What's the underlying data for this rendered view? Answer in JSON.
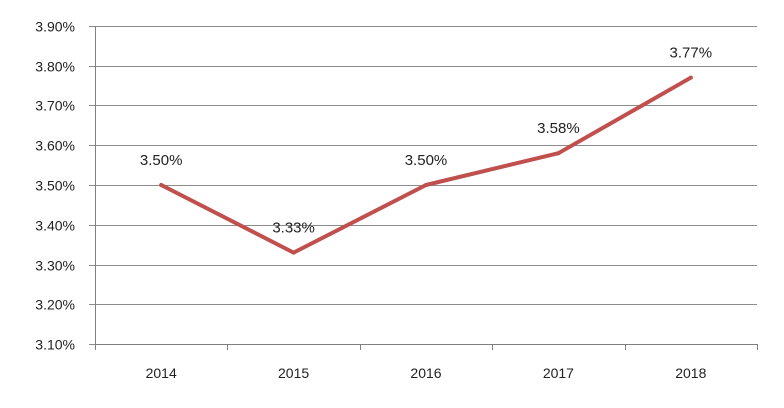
{
  "chart_data": {
    "type": "line",
    "title": "",
    "xlabel": "",
    "ylabel": "",
    "categories": [
      "2014",
      "2015",
      "2016",
      "2017",
      "2018"
    ],
    "series": [
      {
        "values": [
          3.5,
          3.33,
          3.5,
          3.58,
          3.77
        ],
        "data_labels": [
          "3.50%",
          "3.33%",
          "3.50%",
          "3.58%",
          "3.77%"
        ],
        "color": "#c0504d"
      }
    ],
    "ylim": [
      3.1,
      3.9
    ],
    "y_ticks": [
      3.1,
      3.2,
      3.3,
      3.4,
      3.5,
      3.6,
      3.7,
      3.8,
      3.9
    ],
    "y_tick_labels": [
      "3.10%",
      "3.20%",
      "3.30%",
      "3.40%",
      "3.50%",
      "3.60%",
      "3.70%",
      "3.80%",
      "3.90%"
    ],
    "grid": true,
    "legend": "none",
    "colors": {
      "gridline": "#8c8c8c",
      "axis": "#7f7f7f",
      "text": "#222222"
    }
  }
}
